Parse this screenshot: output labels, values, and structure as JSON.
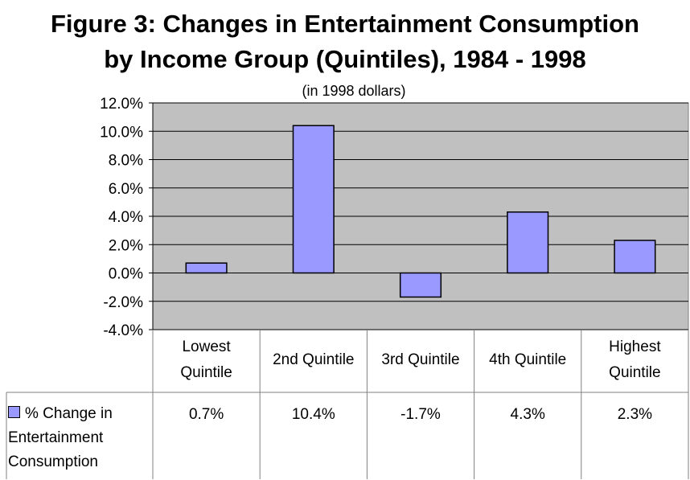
{
  "title_line1": "Figure 3: Changes in Entertainment Consumption",
  "title_line2": "by Income Group (Quintiles), 1984 - 1998",
  "subtitle": "(in 1998 dollars)",
  "colors": {
    "bar": "#9999ff",
    "plot_bg": "#c0c0c0",
    "grid": "#000000"
  },
  "chart_data": {
    "type": "bar",
    "title": "Figure 3: Changes in Entertainment Consumption by Income Group (Quintiles), 1984 - 1998",
    "subtitle": "(in 1998 dollars)",
    "categories": [
      "Lowest Quintile",
      "2nd Quintile",
      "3rd Quintile",
      "4th Quintile",
      "Highest Quintile"
    ],
    "category_lines": [
      [
        "Lowest",
        "Quintile"
      ],
      [
        "2nd Quintile"
      ],
      [
        "3rd Quintile"
      ],
      [
        "4th Quintile"
      ],
      [
        "Highest",
        "Quintile"
      ]
    ],
    "series": [
      {
        "name": "% Change in Entertainment Consumption",
        "values": [
          0.7,
          10.4,
          -1.7,
          4.3,
          2.3
        ]
      }
    ],
    "value_labels": [
      "0.7%",
      "10.4%",
      "-1.7%",
      "4.3%",
      "2.3%"
    ],
    "legend_lines": [
      "% Change in",
      "Entertainment",
      "Consumption"
    ],
    "ylim": [
      -4.0,
      12.0
    ],
    "y_ticks": [
      12.0,
      10.0,
      8.0,
      6.0,
      4.0,
      2.0,
      0.0,
      -2.0,
      -4.0
    ],
    "y_tick_labels": [
      "12.0%",
      "10.0%",
      "8.0%",
      "6.0%",
      "4.0%",
      "2.0%",
      "0.0%",
      "-2.0%",
      "-4.0%"
    ],
    "grid": true,
    "legend_position": "data-table"
  }
}
